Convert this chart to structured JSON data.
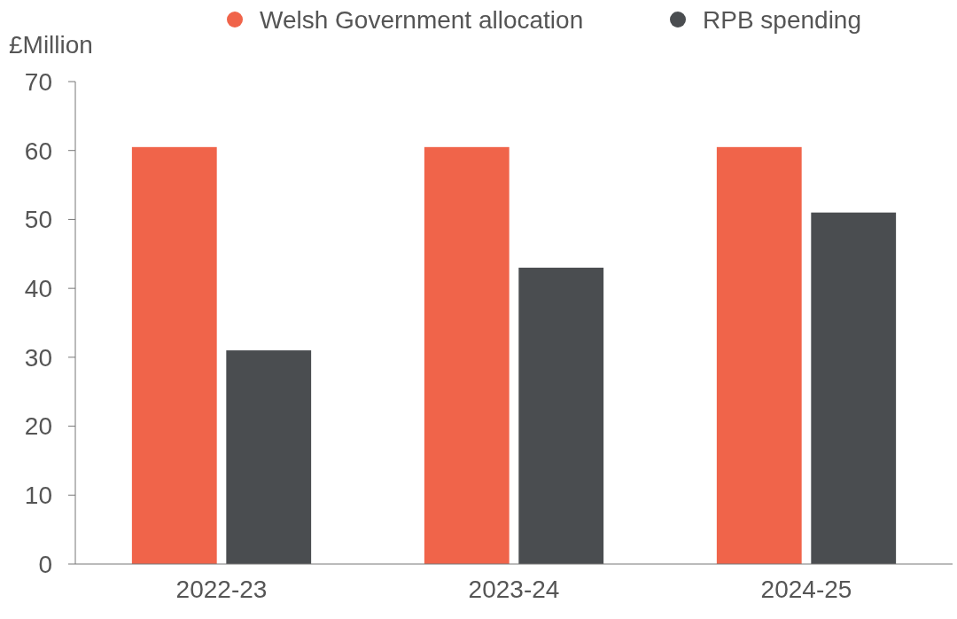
{
  "chart_data": {
    "type": "bar",
    "ylabel": "£Million",
    "categories": [
      "2022-23",
      "2023-24",
      "2024-25"
    ],
    "series": [
      {
        "name": "Welsh Government allocation",
        "color": "#f0644a",
        "values": [
          60.5,
          60.5,
          60.5
        ]
      },
      {
        "name": "RPB spending",
        "color": "#4a4d50",
        "values": [
          31,
          43,
          51
        ]
      }
    ],
    "ylim": [
      0,
      70
    ],
    "yticks": [
      0,
      10,
      20,
      30,
      40,
      50,
      60,
      70
    ],
    "grid": false,
    "legend": "top"
  }
}
